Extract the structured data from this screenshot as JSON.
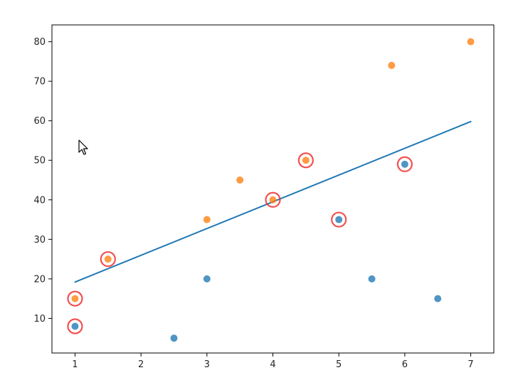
{
  "chart_data": {
    "type": "scatter",
    "title": "",
    "xlabel": "",
    "ylabel": "",
    "xlim": [
      0.65,
      7.35
    ],
    "ylim": [
      1.25,
      84.25
    ],
    "x_ticks": [
      1,
      2,
      3,
      4,
      5,
      6,
      7
    ],
    "y_ticks": [
      10,
      20,
      30,
      40,
      50,
      60,
      70,
      80
    ],
    "grid": false,
    "legend": "none",
    "series": [
      {
        "color": "#1f77b4",
        "points": [
          [
            1,
            8
          ],
          [
            2.5,
            5
          ],
          [
            3,
            20
          ],
          [
            5,
            35
          ],
          [
            5.5,
            20
          ],
          [
            6,
            49
          ],
          [
            6.5,
            15
          ]
        ]
      },
      {
        "color": "#ff7f0e",
        "points": [
          [
            1,
            15
          ],
          [
            1.5,
            25
          ],
          [
            3,
            35
          ],
          [
            3.5,
            45
          ],
          [
            4,
            40
          ],
          [
            4.5,
            50
          ],
          [
            5.8,
            74
          ],
          [
            7,
            80
          ]
        ]
      }
    ],
    "trend_line": {
      "color": "#1f77b4",
      "points": [
        [
          1,
          19.2
        ],
        [
          7,
          59.8
        ]
      ]
    },
    "highlighted": {
      "color": "#f03232",
      "points": [
        [
          1,
          8
        ],
        [
          1,
          15
        ],
        [
          1.5,
          25
        ],
        [
          4,
          40
        ],
        [
          4.5,
          50
        ],
        [
          5,
          35
        ],
        [
          6,
          49
        ]
      ]
    }
  },
  "ui": {
    "cursor_icon": "arrow-cursor-icon"
  }
}
